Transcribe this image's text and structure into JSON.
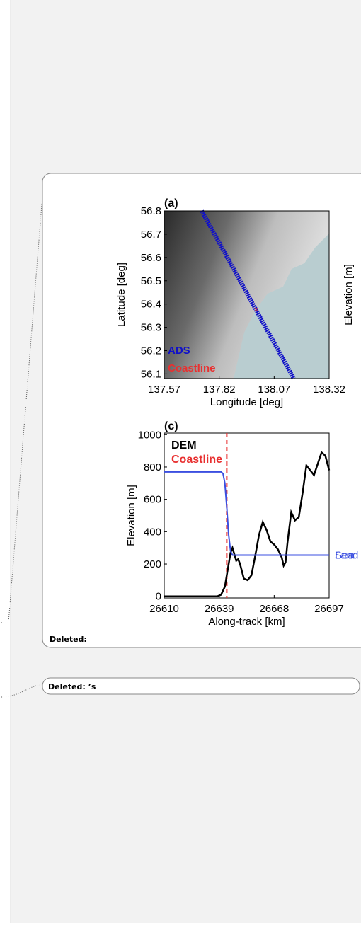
{
  "comments": [
    {
      "label": "Deleted:",
      "figure": {
        "map": {
          "title": "(a)",
          "ylabel": "Latitude [deg]",
          "xlabel": "Longitude [deg]",
          "colorbar_label": "Elevation [m]",
          "legend": [
            {
              "name": "ADS",
              "color": "#1010c8"
            },
            {
              "name": "Coastline",
              "color": "#e83030"
            }
          ],
          "xlim": [
            137.57,
            138.32
          ],
          "xticks": [
            137.57,
            137.82,
            138.07,
            138.32
          ],
          "ylim": [
            56.08,
            56.8
          ],
          "yticks": [
            56.8,
            56.7,
            56.6,
            56.5,
            56.4,
            56.3,
            56.2,
            56.1
          ]
        },
        "profile": {
          "type": "line",
          "title": "(c)",
          "ylabel": "Elevation [m]",
          "xlabel": "Along-track [km]",
          "xlim": [
            26610,
            26697
          ],
          "xticks": [
            26610,
            26639,
            26668,
            26697
          ],
          "ylim": [
            -10,
            1010
          ],
          "yticks": [
            0,
            200,
            400,
            600,
            800,
            1000
          ],
          "legend": [
            {
              "name": "DEM",
              "color": "#000000"
            },
            {
              "name": "Coastline",
              "color": "#e83030"
            }
          ],
          "coastline_x": 26643,
          "series": [
            {
              "name": "DEM",
              "color": "#000000",
              "x": [
                26610,
                26638,
                26640,
                26642,
                26644,
                26645,
                26646,
                26647,
                26648,
                26649,
                26650,
                26652,
                26654,
                26656,
                26658,
                26660,
                26662,
                26664,
                26666,
                26668,
                26670,
                26672,
                26673,
                26674,
                26675,
                26677,
                26679,
                26681,
                26683,
                26685,
                26687,
                26689,
                26691,
                26693,
                26695,
                26697
              ],
              "y": [
                0,
                0,
                10,
                60,
                200,
                270,
                300,
                260,
                220,
                230,
                200,
                110,
                100,
                130,
                250,
                380,
                460,
                410,
                340,
                320,
                290,
                240,
                190,
                210,
                330,
                520,
                470,
                490,
                640,
                810,
                780,
                750,
                820,
                890,
                870,
                780
              ]
            },
            {
              "name": "Sea",
              "color": "#3b4fe0",
              "x": [
                26610,
                26640,
                26641,
                26642,
                26643,
                26644,
                26645,
                26646,
                26697
              ],
              "y": [
                770,
                770,
                760,
                700,
                550,
                380,
                280,
                255,
                255
              ]
            },
            {
              "name": "Land",
              "color": "#3b4fe0",
              "x": [
                26646,
                26697
              ],
              "y": [
                255,
                255
              ]
            }
          ]
        }
      }
    },
    {
      "label": "Deleted: ’s"
    }
  ]
}
